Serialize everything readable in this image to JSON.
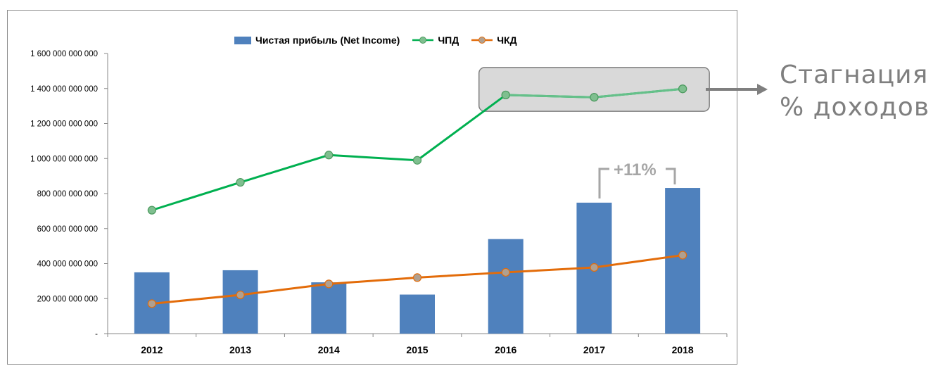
{
  "chart_data": {
    "type": "bar+line",
    "categories": [
      "2012",
      "2013",
      "2014",
      "2015",
      "2016",
      "2017",
      "2018"
    ],
    "series": [
      {
        "name": "Чистая прибыль (Net Income)",
        "type": "bar",
        "color": "#4f81bd",
        "values": [
          350000000000,
          362000000000,
          293000000000,
          223000000000,
          540000000000,
          748000000000,
          832000000000
        ]
      },
      {
        "name": "ЧПД",
        "type": "line",
        "color": "#00b050",
        "values": [
          705000000000,
          864000000000,
          1020000000000,
          990000000000,
          1363000000000,
          1350000000000,
          1398000000000
        ]
      },
      {
        "name": "ЧКД",
        "type": "line",
        "color": "#e36c0a",
        "values": [
          171000000000,
          221000000000,
          284000000000,
          320000000000,
          350000000000,
          378000000000,
          448000000000
        ]
      }
    ],
    "ylim": [
      0,
      1600000000000
    ],
    "yticks": [
      0,
      200000000000,
      400000000000,
      600000000000,
      800000000000,
      1000000000000,
      1200000000000,
      1400000000000,
      1600000000000
    ],
    "ytick_labels": [
      "-",
      "200 000 000 000",
      "400 000 000 000",
      "600 000 000 000",
      "800 000 000 000",
      "1 000 000 000 000",
      "1 200 000 000 000",
      "1 400 000 000 000",
      "1 600 000 000 000"
    ],
    "grid": false,
    "legend_position": "top",
    "annotations": {
      "growth_label": "+11%",
      "callout_line1": "Стагнация",
      "callout_line2": "% доходов"
    }
  }
}
